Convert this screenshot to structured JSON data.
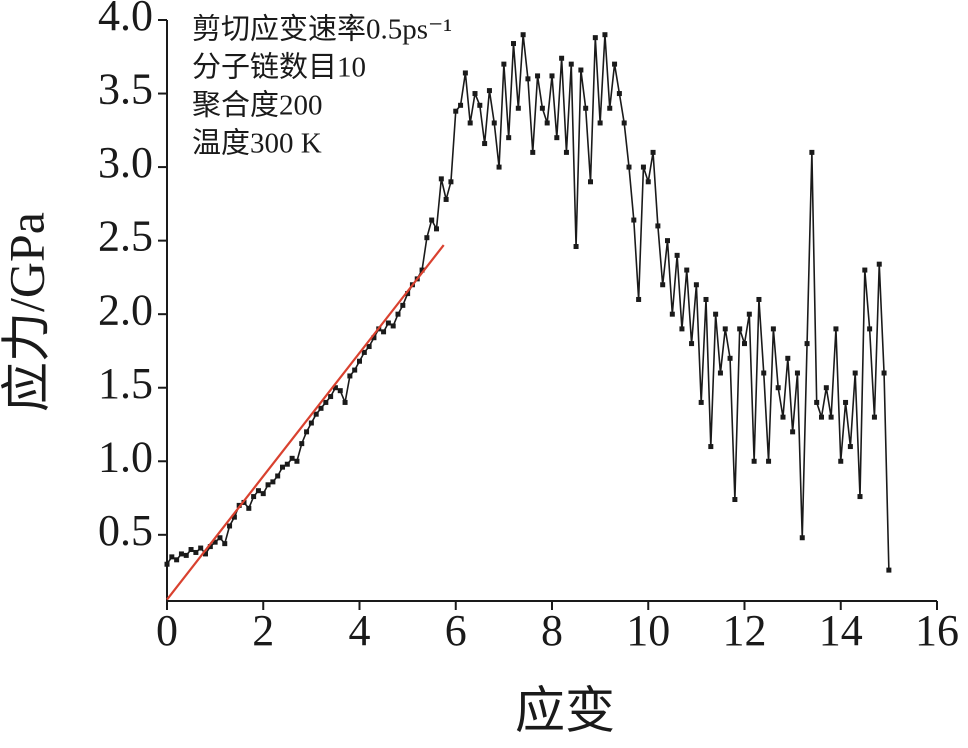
{
  "chart_data": {
    "type": "line",
    "annotations": [
      "剪切应变速率0.5ps⁻¹",
      "分子链数目10",
      "聚合度200",
      "温度300 K"
    ],
    "xlabel": "应变",
    "ylabel": "应力/GPa",
    "xlim": [
      0,
      16
    ],
    "ylim": [
      0.05,
      4.0
    ],
    "xticks": [
      0,
      2,
      4,
      6,
      8,
      10,
      12,
      14,
      16
    ],
    "yticks": [
      0.5,
      {
        "value": 1,
        "label": "1.0"
      },
      1.5,
      {
        "value": 2,
        "label": "2.0"
      },
      2.5,
      {
        "value": 3,
        "label": "3.0"
      },
      3.5,
      {
        "value": 4,
        "label": "4.0"
      }
    ],
    "series": [
      {
        "color": "#1a1a1a",
        "markers": true,
        "x": [
          0.0,
          0.1,
          0.2,
          0.3,
          0.4,
          0.5,
          0.6,
          0.7,
          0.8,
          0.9,
          1.0,
          1.1,
          1.2,
          1.3,
          1.4,
          1.5,
          1.6,
          1.7,
          1.8,
          1.9,
          2.0,
          2.1,
          2.2,
          2.3,
          2.4,
          2.5,
          2.6,
          2.7,
          2.8,
          2.9,
          3.0,
          3.1,
          3.2,
          3.3,
          3.4,
          3.5,
          3.6,
          3.7,
          3.8,
          3.9,
          4.0,
          4.1,
          4.2,
          4.3,
          4.4,
          4.5,
          4.6,
          4.7,
          4.8,
          4.9,
          5.0,
          5.1,
          5.2,
          5.3,
          5.4,
          5.5,
          5.6,
          5.7,
          5.8,
          5.9,
          6.0,
          6.1,
          6.2,
          6.3,
          6.4,
          6.5,
          6.6,
          6.7,
          6.8,
          6.9,
          7.0,
          7.1,
          7.2,
          7.3,
          7.4,
          7.5,
          7.6,
          7.7,
          7.8,
          7.9,
          8.0,
          8.1,
          8.2,
          8.3,
          8.4,
          8.5,
          8.6,
          8.7,
          8.8,
          8.9,
          9.0,
          9.1,
          9.2,
          9.3,
          9.4,
          9.5,
          9.6,
          9.7,
          9.8,
          9.9,
          10.0,
          10.1,
          10.2,
          10.3,
          10.4,
          10.5,
          10.6,
          10.7,
          10.8,
          10.9,
          11.0,
          11.1,
          11.2,
          11.3,
          11.4,
          11.5,
          11.6,
          11.7,
          11.8,
          11.9,
          12.0,
          12.1,
          12.2,
          12.3,
          12.4,
          12.5,
          12.6,
          12.7,
          12.8,
          12.9,
          13.0,
          13.1,
          13.2,
          13.3,
          13.4,
          13.5,
          13.6,
          13.7,
          13.8,
          13.9,
          14.0,
          14.1,
          14.2,
          14.3,
          14.4,
          14.5,
          14.6,
          14.7,
          14.8,
          14.9,
          15.0
        ],
        "values": [
          0.3,
          0.35,
          0.33,
          0.37,
          0.36,
          0.4,
          0.38,
          0.41,
          0.37,
          0.42,
          0.45,
          0.48,
          0.44,
          0.56,
          0.62,
          0.7,
          0.72,
          0.68,
          0.76,
          0.8,
          0.78,
          0.84,
          0.86,
          0.9,
          0.96,
          0.98,
          1.02,
          1.0,
          1.12,
          1.2,
          1.26,
          1.32,
          1.36,
          1.4,
          1.44,
          1.5,
          1.48,
          1.4,
          1.58,
          1.62,
          1.68,
          1.74,
          1.78,
          1.84,
          1.9,
          1.88,
          1.94,
          1.92,
          2.0,
          2.06,
          2.14,
          2.2,
          2.24,
          2.3,
          2.52,
          2.64,
          2.58,
          2.92,
          2.78,
          2.9,
          3.38,
          3.42,
          3.64,
          3.3,
          3.5,
          3.42,
          3.16,
          3.52,
          3.3,
          3.0,
          3.7,
          3.2,
          3.84,
          3.4,
          3.9,
          3.6,
          3.1,
          3.62,
          3.4,
          3.3,
          3.62,
          3.2,
          3.74,
          3.1,
          3.7,
          2.46,
          3.66,
          3.4,
          2.9,
          3.88,
          3.3,
          3.9,
          3.4,
          3.7,
          3.5,
          3.3,
          3.0,
          2.64,
          2.1,
          3.0,
          2.9,
          3.1,
          2.6,
          2.2,
          2.5,
          2.0,
          2.4,
          1.9,
          2.3,
          1.8,
          2.2,
          1.4,
          2.1,
          1.1,
          2.0,
          1.6,
          1.9,
          1.7,
          0.74,
          1.9,
          1.8,
          2.0,
          1.0,
          2.1,
          1.6,
          1.0,
          1.9,
          1.5,
          1.3,
          1.7,
          1.2,
          1.6,
          0.48,
          1.8,
          3.1,
          1.4,
          1.3,
          1.5,
          1.3,
          1.9,
          1.0,
          1.4,
          1.1,
          1.6,
          0.76,
          2.3,
          1.9,
          1.3,
          2.34,
          1.6,
          0.26
        ]
      },
      {
        "color": "#d9412f",
        "markers": false,
        "x": [
          0,
          5.75
        ],
        "values": [
          0.06,
          2.47
        ]
      }
    ]
  }
}
